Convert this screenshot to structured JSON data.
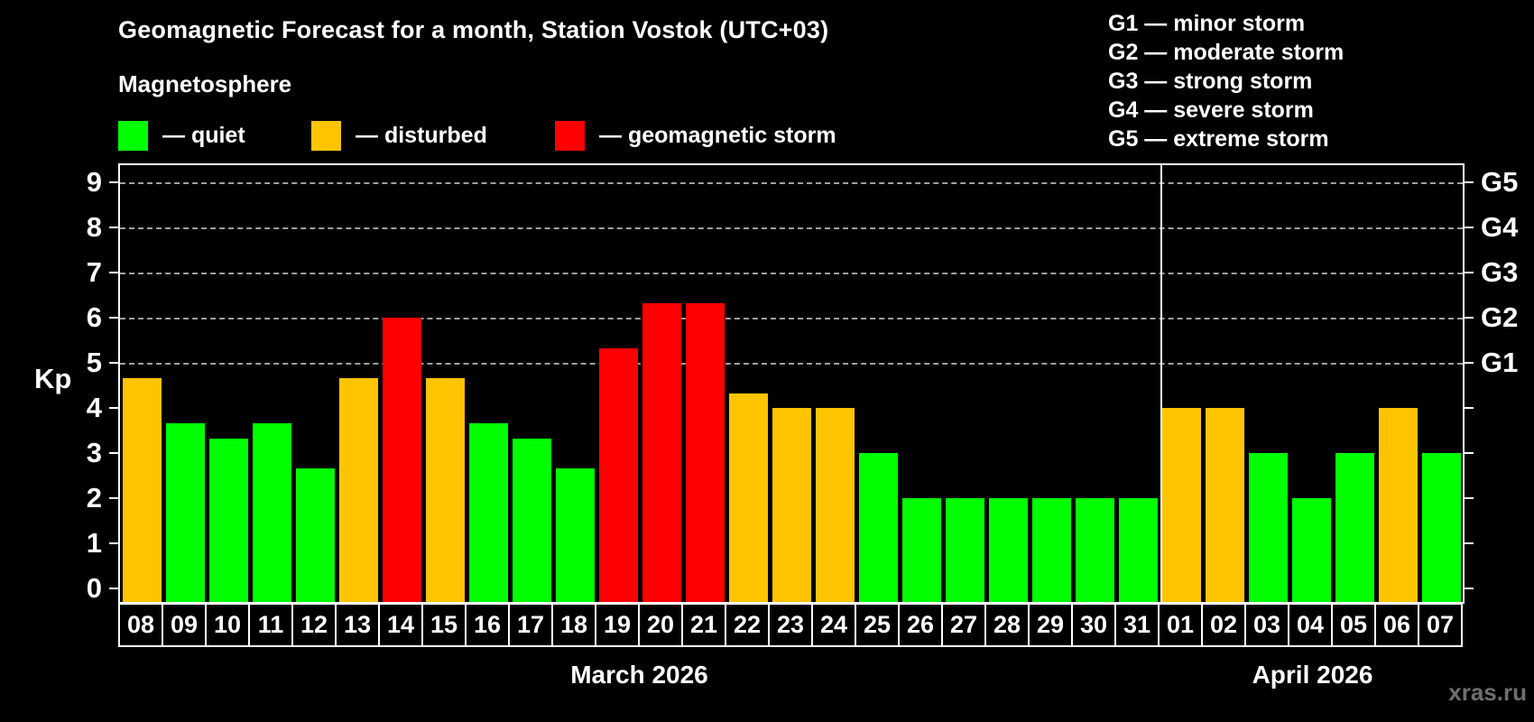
{
  "title": "Geomagnetic Forecast for a month, Station Vostok (UTC+03)",
  "subtitle": "Magnetosphere",
  "legend": {
    "items": [
      {
        "key": "quiet",
        "label": "— quiet"
      },
      {
        "key": "disturbed",
        "label": "— disturbed"
      },
      {
        "key": "storm",
        "label": "— geomagnetic storm"
      }
    ]
  },
  "g_scale_legend": [
    "G1 — minor storm",
    "G2 — moderate storm",
    "G3 — strong storm",
    "G4 — severe storm",
    "G5 — extreme storm"
  ],
  "axis": {
    "y_label": "Kp",
    "y_ticks": [
      0,
      1,
      2,
      3,
      4,
      5,
      6,
      7,
      8,
      9
    ],
    "right_scale": [
      {
        "kp": 5,
        "label": "G1"
      },
      {
        "kp": 6,
        "label": "G2"
      },
      {
        "kp": 7,
        "label": "G3"
      },
      {
        "kp": 8,
        "label": "G4"
      },
      {
        "kp": 9,
        "label": "G5"
      }
    ]
  },
  "months": [
    {
      "label": "March 2026",
      "days": 24
    },
    {
      "label": "April 2026",
      "days": 7
    }
  ],
  "watermark": "xras.ru",
  "colors": {
    "quiet": "#00ff00",
    "disturbed": "#ffc400",
    "storm": "#ff0000",
    "grid": "#9f9f9f",
    "frame": "#ffffff",
    "background": "#000000"
  },
  "chart_data": {
    "type": "bar",
    "title": "Geomagnetic Forecast for a month, Station Vostok (UTC+03)",
    "xlabel": "",
    "ylabel": "Kp",
    "ylim": [
      0,
      9
    ],
    "grid_levels": [
      5,
      6,
      7,
      8,
      9
    ],
    "legend_position": "top-left",
    "categories": [
      "08",
      "09",
      "10",
      "11",
      "12",
      "13",
      "14",
      "15",
      "16",
      "17",
      "18",
      "19",
      "20",
      "21",
      "22",
      "23",
      "24",
      "25",
      "26",
      "27",
      "28",
      "29",
      "30",
      "31",
      "01",
      "02",
      "03",
      "04",
      "05",
      "06",
      "07"
    ],
    "points": [
      {
        "day": "08",
        "month": "March 2026",
        "kp": 4.67,
        "status": "disturbed"
      },
      {
        "day": "09",
        "month": "March 2026",
        "kp": 3.67,
        "status": "quiet"
      },
      {
        "day": "10",
        "month": "March 2026",
        "kp": 3.33,
        "status": "quiet"
      },
      {
        "day": "11",
        "month": "March 2026",
        "kp": 3.67,
        "status": "quiet"
      },
      {
        "day": "12",
        "month": "March 2026",
        "kp": 2.67,
        "status": "quiet"
      },
      {
        "day": "13",
        "month": "March 2026",
        "kp": 4.67,
        "status": "disturbed"
      },
      {
        "day": "14",
        "month": "March 2026",
        "kp": 6.0,
        "status": "storm"
      },
      {
        "day": "15",
        "month": "March 2026",
        "kp": 4.67,
        "status": "disturbed"
      },
      {
        "day": "16",
        "month": "March 2026",
        "kp": 3.67,
        "status": "quiet"
      },
      {
        "day": "17",
        "month": "March 2026",
        "kp": 3.33,
        "status": "quiet"
      },
      {
        "day": "18",
        "month": "March 2026",
        "kp": 2.67,
        "status": "quiet"
      },
      {
        "day": "19",
        "month": "March 2026",
        "kp": 5.33,
        "status": "storm"
      },
      {
        "day": "20",
        "month": "March 2026",
        "kp": 6.33,
        "status": "storm"
      },
      {
        "day": "21",
        "month": "March 2026",
        "kp": 6.33,
        "status": "storm"
      },
      {
        "day": "22",
        "month": "March 2026",
        "kp": 4.33,
        "status": "disturbed"
      },
      {
        "day": "23",
        "month": "March 2026",
        "kp": 4.0,
        "status": "disturbed"
      },
      {
        "day": "24",
        "month": "March 2026",
        "kp": 4.0,
        "status": "disturbed"
      },
      {
        "day": "25",
        "month": "March 2026",
        "kp": 3.0,
        "status": "quiet"
      },
      {
        "day": "26",
        "month": "March 2026",
        "kp": 2.0,
        "status": "quiet"
      },
      {
        "day": "27",
        "month": "March 2026",
        "kp": 2.0,
        "status": "quiet"
      },
      {
        "day": "28",
        "month": "March 2026",
        "kp": 2.0,
        "status": "quiet"
      },
      {
        "day": "29",
        "month": "March 2026",
        "kp": 2.0,
        "status": "quiet"
      },
      {
        "day": "30",
        "month": "March 2026",
        "kp": 2.0,
        "status": "quiet"
      },
      {
        "day": "31",
        "month": "March 2026",
        "kp": 2.0,
        "status": "quiet"
      },
      {
        "day": "01",
        "month": "April 2026",
        "kp": 4.0,
        "status": "disturbed"
      },
      {
        "day": "02",
        "month": "April 2026",
        "kp": 4.0,
        "status": "disturbed"
      },
      {
        "day": "03",
        "month": "April 2026",
        "kp": 3.0,
        "status": "quiet"
      },
      {
        "day": "04",
        "month": "April 2026",
        "kp": 2.0,
        "status": "quiet"
      },
      {
        "day": "05",
        "month": "April 2026",
        "kp": 3.0,
        "status": "quiet"
      },
      {
        "day": "06",
        "month": "April 2026",
        "kp": 4.0,
        "status": "disturbed"
      },
      {
        "day": "07",
        "month": "April 2026",
        "kp": 3.0,
        "status": "quiet"
      }
    ]
  }
}
